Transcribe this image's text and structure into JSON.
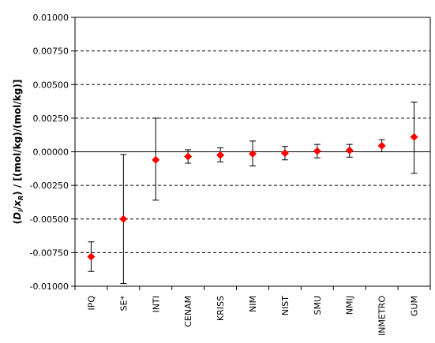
{
  "chart_data": {
    "type": "scatter",
    "ylabel_parts": [
      "(",
      "D",
      "i",
      "/",
      "x",
      "R",
      ") / [(mol/kg)/(mol/kg)]"
    ],
    "ylim": [
      -0.01,
      0.01
    ],
    "yticks": [
      0.01,
      0.0075,
      0.005,
      0.0025,
      0.0,
      -0.0025,
      -0.005,
      -0.0075,
      -0.01
    ],
    "ytick_labels": [
      "0.01000",
      "0.00750",
      "0.00500",
      "0.00250",
      "0.00000",
      "-0.00250",
      "-0.00500",
      "-0.00750",
      "-0.01000"
    ],
    "grid": "horizontal-dashed",
    "marker_color": "#ff0000",
    "categories": [
      "IPQ",
      "SE*",
      "INTI",
      "CENAM",
      "KRISS",
      "NIM",
      "NIST",
      "SMU",
      "NMIJ",
      "INMETRO",
      "GUM"
    ],
    "values": [
      -0.0078,
      -0.005,
      -0.0006,
      -0.00035,
      -0.00025,
      -0.00015,
      -0.0001,
      5e-05,
      0.0001,
      0.00045,
      0.0011
    ],
    "err_low": [
      -0.0089,
      -0.0098,
      -0.0036,
      -0.00085,
      -0.00075,
      -0.00105,
      -0.0006,
      -0.00045,
      -0.0004,
      0.0,
      -0.0016
    ],
    "err_high": [
      -0.0067,
      -0.0002,
      0.0025,
      0.00015,
      0.0003,
      0.0008,
      0.0004,
      0.00055,
      0.00055,
      0.0009,
      0.0037
    ]
  }
}
